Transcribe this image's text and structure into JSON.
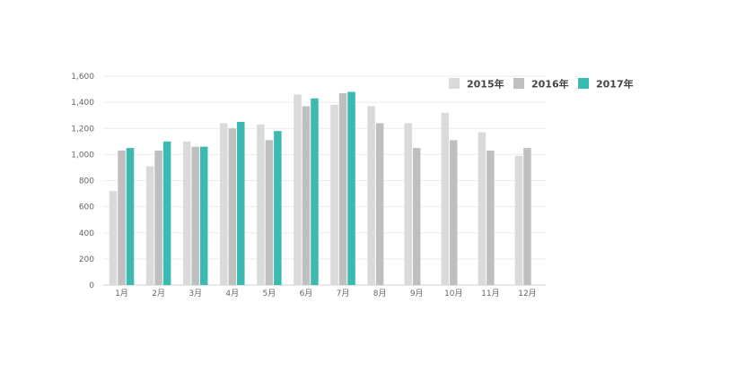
{
  "chart_data": {
    "type": "bar",
    "title": "",
    "xlabel": "",
    "ylabel": "",
    "ylim": [
      0,
      1600
    ],
    "yticks": [
      "0",
      "200",
      "400",
      "600",
      "800",
      "1,000",
      "1,200",
      "1,400",
      "1,600"
    ],
    "categories": [
      "1月",
      "2月",
      "3月",
      "4月",
      "5月",
      "6月",
      "7月",
      "8月",
      "9月",
      "10月",
      "11月",
      "12月"
    ],
    "grid": true,
    "legend_position": "top-right",
    "series": [
      {
        "name": "2015年",
        "color": "#dadada",
        "values": [
          720,
          910,
          1100,
          1240,
          1230,
          1460,
          1380,
          1370,
          1240,
          1320,
          1170,
          990
        ]
      },
      {
        "name": "2016年",
        "color": "#bfbfbf",
        "values": [
          1030,
          1030,
          1060,
          1200,
          1110,
          1370,
          1470,
          1240,
          1050,
          1110,
          1030,
          1050
        ]
      },
      {
        "name": "2017年",
        "color": "#3bbab2",
        "values": [
          1050,
          1100,
          1060,
          1250,
          1180,
          1430,
          1480,
          null,
          null,
          null,
          null,
          null
        ]
      }
    ]
  }
}
